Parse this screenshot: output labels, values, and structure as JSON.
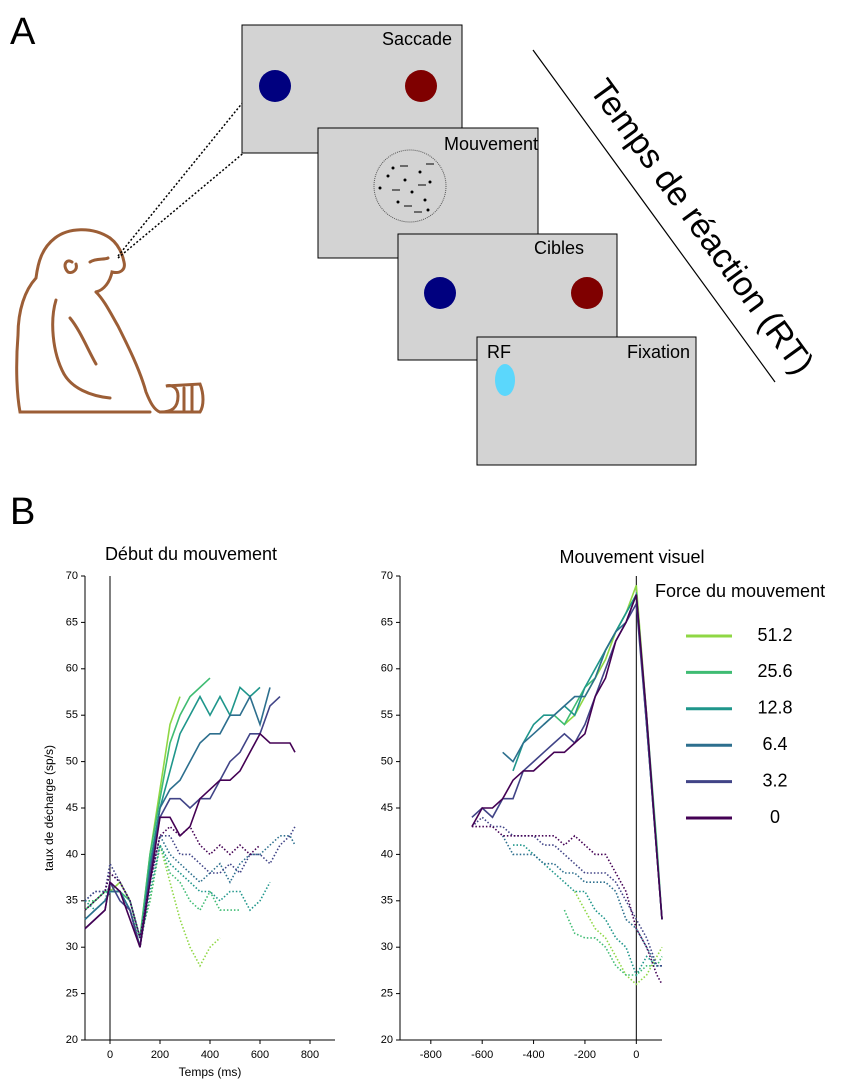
{
  "panel_labels": [
    "A",
    "B"
  ],
  "diagram": {
    "screens": [
      {
        "label": "Saccade"
      },
      {
        "label": "Mouvement"
      },
      {
        "label": "Cibles"
      },
      {
        "label": "Fixation",
        "rf_label": "RF"
      }
    ],
    "rt_label": "Temps de réaction (RT)"
  },
  "chart_data": [
    {
      "type": "line",
      "title": "Début du mouvement",
      "x_label": "Temps (ms)",
      "y_label": "taux de décharge (sp/s)",
      "xlim": [
        -100,
        900
      ],
      "xticks": [
        0,
        200,
        400,
        600,
        800
      ],
      "ylim": [
        20,
        70
      ],
      "yticks": [
        20,
        25,
        30,
        35,
        40,
        45,
        50,
        55,
        60,
        65,
        70
      ],
      "x": [
        -100,
        -60,
        -20,
        0,
        40,
        80,
        120,
        160,
        200,
        240,
        280,
        320,
        360,
        400,
        440,
        480,
        520,
        560,
        600,
        640,
        680,
        720,
        740
      ],
      "series": [
        {
          "color": "#8fd744",
          "values": [
            34,
            35,
            36,
            36,
            37,
            35,
            31,
            40,
            47,
            54,
            57,
            null,
            null,
            null,
            null,
            null,
            null,
            null,
            null,
            null,
            null,
            null,
            null
          ],
          "dotted_values": [
            35,
            35,
            36,
            36,
            36,
            34,
            31,
            35,
            41,
            37,
            33,
            30,
            28,
            30,
            31,
            null,
            null,
            null,
            null,
            null,
            null,
            null,
            null
          ]
        },
        {
          "color": "#3fbc73",
          "values": [
            34,
            35,
            36,
            36,
            36,
            35,
            31,
            40,
            46,
            52,
            55,
            57,
            58,
            59,
            null,
            null,
            null,
            null,
            null,
            null,
            null,
            null,
            null
          ],
          "dotted_values": [
            35,
            35,
            36,
            36,
            36,
            34,
            31,
            35,
            41,
            38,
            37,
            35,
            34,
            36,
            34,
            34,
            34,
            null,
            null,
            null,
            null,
            null,
            null
          ]
        },
        {
          "color": "#1f968b",
          "values": [
            33,
            34,
            35,
            36,
            36,
            34,
            30,
            39,
            45,
            49,
            53,
            55,
            57,
            55,
            57,
            55,
            58,
            57,
            58,
            null,
            null,
            null,
            null
          ],
          "dotted_values": [
            35,
            34,
            35,
            37,
            36,
            34,
            30,
            36,
            41,
            39,
            38,
            37,
            36,
            36,
            35,
            36,
            36,
            34,
            35,
            37,
            null,
            null,
            null
          ]
        },
        {
          "color": "#2d6f8e",
          "values": [
            33,
            34,
            35,
            36,
            36,
            34,
            30,
            38,
            45,
            47,
            48,
            50,
            52,
            53,
            53,
            55,
            55,
            57,
            54,
            58,
            null,
            null,
            null
          ],
          "dotted_values": [
            35,
            36,
            36,
            38,
            37,
            35,
            31,
            37,
            42,
            40,
            39,
            38,
            37,
            38,
            39,
            37,
            39,
            40,
            40,
            41,
            42,
            42,
            41
          ]
        },
        {
          "color": "#414487",
          "values": [
            32,
            33,
            34,
            37,
            35,
            34,
            30,
            38,
            44,
            46,
            46,
            45,
            46,
            46,
            48,
            50,
            51,
            53,
            53,
            56,
            57,
            null,
            null
          ],
          "dotted_values": [
            35,
            36,
            36,
            39,
            37,
            35,
            31,
            37,
            42,
            42,
            40,
            40,
            39,
            38,
            38,
            39,
            38,
            40,
            40,
            39,
            41,
            42,
            43
          ]
        },
        {
          "color": "#440154",
          "values": [
            32,
            33,
            34,
            37,
            36,
            33,
            30,
            37,
            44,
            44,
            42,
            43,
            46,
            47,
            48,
            48,
            49,
            51,
            53,
            52,
            52,
            52,
            51
          ],
          "dotted_values": [
            34,
            35,
            36,
            38,
            37,
            35,
            31,
            37,
            42,
            43,
            42,
            43,
            41,
            40,
            41,
            40,
            41,
            40,
            41,
            null,
            null,
            null,
            null
          ]
        }
      ]
    },
    {
      "type": "line",
      "title": "Mouvement visuel",
      "legend_title": "Force du mouvement",
      "xlim": [
        -920,
        100
      ],
      "xticks": [
        -800,
        -600,
        -400,
        -200,
        0
      ],
      "ylim": [
        20,
        70
      ],
      "yticks": [
        20,
        25,
        30,
        35,
        40,
        45,
        50,
        55,
        60,
        65,
        70
      ],
      "x": [
        -640,
        -600,
        -560,
        -520,
        -480,
        -440,
        -400,
        -360,
        -320,
        -280,
        -240,
        -200,
        -160,
        -120,
        -80,
        -40,
        0,
        40,
        80,
        100
      ],
      "series": [
        {
          "name": "51.2",
          "color": "#8fd744",
          "values": [
            null,
            null,
            null,
            null,
            null,
            null,
            null,
            null,
            null,
            54,
            55,
            57,
            59,
            61,
            64,
            66,
            69,
            55,
            40,
            33
          ],
          "dotted_values": [
            null,
            null,
            null,
            null,
            null,
            null,
            null,
            null,
            null,
            null,
            36,
            34,
            32,
            31,
            29,
            27,
            26,
            27,
            29,
            30
          ]
        },
        {
          "name": "25.6",
          "color": "#3fbc73",
          "values": [
            null,
            null,
            null,
            null,
            null,
            null,
            null,
            54,
            55,
            54,
            56,
            58,
            59,
            62,
            64,
            66,
            68,
            55,
            41,
            33
          ],
          "dotted_values": [
            null,
            null,
            null,
            null,
            null,
            null,
            null,
            null,
            null,
            34,
            31.5,
            31,
            31,
            30,
            28,
            27,
            27,
            28,
            28,
            29
          ]
        },
        {
          "name": "12.8",
          "color": "#1f968b",
          "values": [
            null,
            null,
            null,
            null,
            49,
            52,
            54,
            55,
            55,
            56,
            55,
            58,
            60,
            62,
            64,
            66,
            68,
            54,
            40,
            33
          ],
          "dotted_values": [
            null,
            null,
            null,
            null,
            41,
            41,
            40,
            39,
            38,
            37,
            36,
            36,
            34,
            33,
            31,
            30,
            27,
            29,
            28,
            28
          ]
        },
        {
          "name": "6.4",
          "color": "#2d6f8e",
          "values": [
            null,
            null,
            null,
            51,
            50,
            52,
            53,
            54,
            55,
            56,
            57,
            57,
            59,
            62,
            64,
            65,
            68,
            54,
            40,
            33
          ],
          "dotted_values": [
            null,
            null,
            null,
            42,
            40,
            40,
            40,
            39,
            39,
            38,
            38,
            37,
            37,
            37,
            36,
            33,
            32,
            30,
            28,
            28
          ]
        },
        {
          "name": "3.2",
          "color": "#414487",
          "values": [
            44,
            45,
            44,
            46,
            46,
            49,
            50,
            51,
            52,
            53,
            52,
            54,
            57,
            60,
            63,
            65,
            67,
            54,
            40,
            33
          ],
          "dotted_values": [
            43,
            44,
            43,
            43,
            42,
            42,
            42,
            41,
            41,
            40,
            39,
            38,
            38,
            38,
            37,
            35,
            33,
            31,
            28,
            28
          ]
        },
        {
          "name": "0",
          "color": "#440154",
          "values": [
            43,
            45,
            45,
            46,
            48,
            49,
            49,
            50,
            51,
            51,
            52,
            53,
            57,
            59,
            63,
            65,
            68,
            55,
            40,
            33
          ],
          "dotted_values": [
            43,
            43,
            43,
            42,
            42,
            42,
            42,
            42,
            42,
            41,
            42,
            41,
            40,
            40,
            38,
            36,
            32,
            30,
            27,
            26
          ]
        }
      ]
    }
  ]
}
